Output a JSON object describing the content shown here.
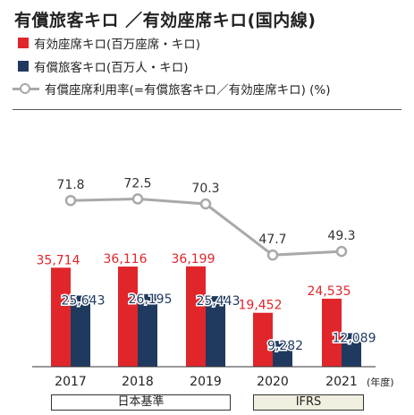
{
  "title": "有償旅客キロ ／有効座席キロ(国内線)",
  "legend": {
    "ask": "有効座席キロ(百万座席・キロ)",
    "rpk": "有償旅客キロ(百万人・キロ)",
    "lf": "有償座席利用率(=有償旅客キロ／有効座席キロ) (%)"
  },
  "year_unit": "(年度)",
  "standards": {
    "jgaap": "日本基準",
    "ifrs": "IFRS"
  },
  "colors": {
    "ask": "#e0262b",
    "rpk": "#203a5f",
    "lf": "#a9a9a9",
    "ifrs_box": "#f1efdf"
  },
  "chart_data": {
    "type": "bar",
    "categories": [
      "2017",
      "2018",
      "2019",
      "2020",
      "2021"
    ],
    "series": [
      {
        "name": "有効座席キロ(百万座席・キロ)",
        "values": [
          35714,
          36116,
          36199,
          19452,
          24535
        ],
        "labels": [
          "35,714",
          "36,116",
          "36,199",
          "19,452",
          "24,535"
        ]
      },
      {
        "name": "有償旅客キロ(百万人・キロ)",
        "values": [
          25643,
          26195,
          25443,
          9282,
          12089
        ],
        "labels": [
          "25,643",
          "26,195",
          "25,443",
          "9,282",
          "12,089"
        ]
      }
    ],
    "line_series": {
      "name": "有償座席利用率(=有償旅客キロ／有効座席キロ) (%)",
      "values": [
        71.8,
        72.5,
        70.3,
        47.7,
        49.3
      ],
      "labels": [
        "71.8",
        "72.5",
        "70.3",
        "47.7",
        "49.3"
      ]
    }
  }
}
